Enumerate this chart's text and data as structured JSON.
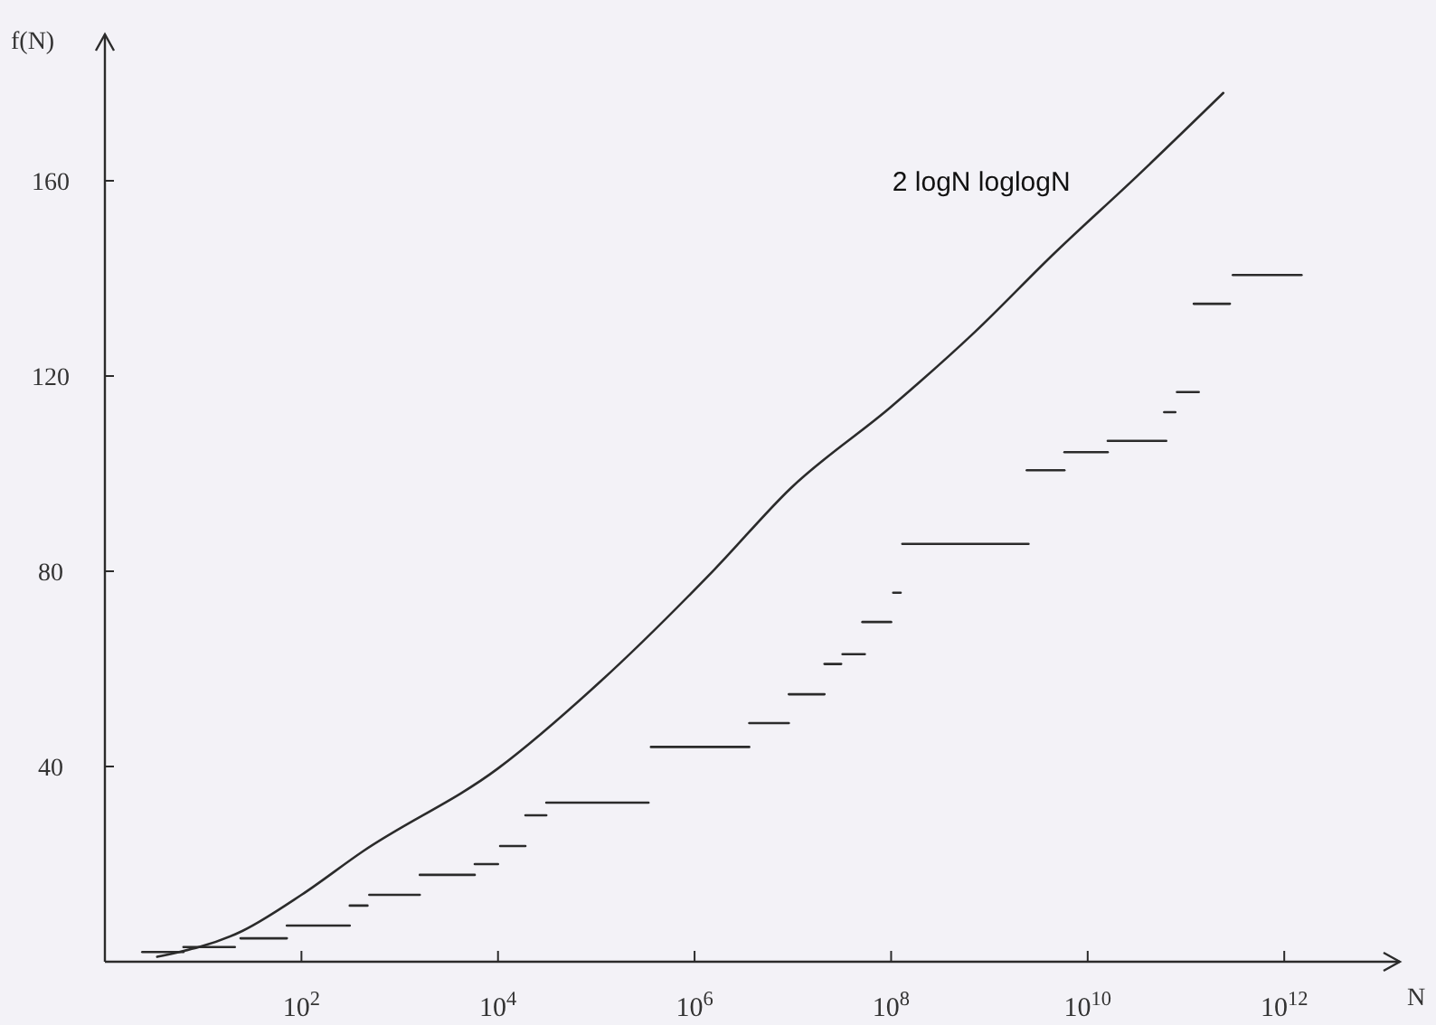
{
  "chart_data": {
    "type": "line",
    "xlabel": "N",
    "ylabel": "f(N)",
    "log": "x",
    "marker": "none",
    "line_style": "solid",
    "legend": false,
    "grid": false,
    "xlim": [
      1,
      15000000000000.0
    ],
    "ylim": [
      0,
      190
    ],
    "xticks": [
      {
        "value": 100,
        "label": "10$^{2}$"
      },
      {
        "value": 10000,
        "label": "10$^{4}$"
      },
      {
        "value": 1000000,
        "label": "10$^{6}$"
      },
      {
        "value": 100000000,
        "label": "10$^{8}$"
      },
      {
        "value": 10000000000,
        "label": "10$^{10}$"
      },
      {
        "value": 1000000000000,
        "label": "10$^{12}$"
      }
    ],
    "yticks": [
      40,
      80,
      120,
      160
    ],
    "series": [
      {
        "name": "2 logN loglogN",
        "color": "#2b2b2b",
        "x": [
          3.4,
          25,
          100,
          420,
          10000,
          110000,
          1600000,
          9500000,
          100000000,
          710000000,
          4500000000,
          32000000000,
          240000000000
        ],
        "values": [
          1,
          6.3,
          13.7,
          22.6,
          39.6,
          57.4,
          80.4,
          97,
          113.7,
          129,
          145,
          161,
          178
        ]
      },
      {
        "color": "#2b2b2b",
        "x": [
          2.4,
          6.3
        ],
        "values": [
          2,
          2
        ]
      },
      {
        "color": "#2b2b2b",
        "x": [
          6.3,
          21
        ],
        "values": [
          3,
          3
        ]
      },
      {
        "color": "#2b2b2b",
        "x": [
          24,
          71
        ],
        "values": [
          4.8,
          4.8
        ]
      },
      {
        "color": "#2b2b2b",
        "x": [
          71,
          310
        ],
        "values": [
          7.4,
          7.4
        ]
      },
      {
        "color": "#2b2b2b",
        "x": [
          310,
          470
        ],
        "values": [
          11.5,
          11.5
        ]
      },
      {
        "color": "#2b2b2b",
        "x": [
          490,
          1600
        ],
        "values": [
          13.7,
          13.7
        ]
      },
      {
        "color": "#2b2b2b",
        "x": [
          1600,
          5800
        ],
        "values": [
          17.8,
          17.8
        ]
      },
      {
        "color": "#2b2b2b",
        "x": [
          5800,
          10000
        ],
        "values": [
          20,
          20
        ]
      },
      {
        "color": "#2b2b2b",
        "x": [
          10500,
          19000
        ],
        "values": [
          23.7,
          23.7
        ]
      },
      {
        "color": "#2b2b2b",
        "x": [
          19000,
          31000
        ],
        "values": [
          30,
          30
        ]
      },
      {
        "color": "#2b2b2b",
        "x": [
          31000,
          340000
        ],
        "values": [
          32.6,
          32.6
        ]
      },
      {
        "color": "#2b2b2b",
        "x": [
          360000,
          3600000
        ],
        "values": [
          44,
          44
        ]
      },
      {
        "color": "#2b2b2b",
        "x": [
          3600000,
          9100000
        ],
        "values": [
          48.9,
          48.9
        ]
      },
      {
        "color": "#2b2b2b",
        "x": [
          9100000,
          21000000
        ],
        "values": [
          54.8,
          54.8
        ]
      },
      {
        "color": "#2b2b2b",
        "x": [
          21000000,
          31000000
        ],
        "values": [
          61,
          61
        ]
      },
      {
        "color": "#2b2b2b",
        "x": [
          32000000,
          54000000
        ],
        "values": [
          63,
          63
        ]
      },
      {
        "color": "#2b2b2b",
        "x": [
          51000000,
          100000000
        ],
        "values": [
          69.6,
          69.6
        ]
      },
      {
        "color": "#2b2b2b",
        "x": [
          105000000,
          125000000
        ],
        "values": [
          75.6,
          75.6
        ]
      },
      {
        "color": "#2b2b2b",
        "x": [
          130000000,
          2500000000
        ],
        "values": [
          85.6,
          85.6
        ]
      },
      {
        "color": "#2b2b2b",
        "x": [
          2400000000,
          5800000000
        ],
        "values": [
          100.7,
          100.7
        ]
      },
      {
        "color": "#2b2b2b",
        "x": [
          5800000000,
          16000000000
        ],
        "values": [
          104.4,
          104.4
        ]
      },
      {
        "color": "#2b2b2b",
        "x": [
          16000000000,
          63000000000
        ],
        "values": [
          106.7,
          106.7
        ]
      },
      {
        "color": "#2b2b2b",
        "x": [
          60000000000,
          78000000000
        ],
        "values": [
          112.6,
          112.6
        ]
      },
      {
        "color": "#2b2b2b",
        "x": [
          81000000000,
          135000000000
        ],
        "values": [
          116.7,
          116.7
        ]
      },
      {
        "color": "#2b2b2b",
        "x": [
          120000000000,
          280000000000
        ],
        "values": [
          134.8,
          134.8
        ]
      },
      {
        "color": "#2b2b2b",
        "x": [
          300000000000,
          1500000000000
        ],
        "values": [
          140.7,
          140.7
        ]
      }
    ]
  }
}
